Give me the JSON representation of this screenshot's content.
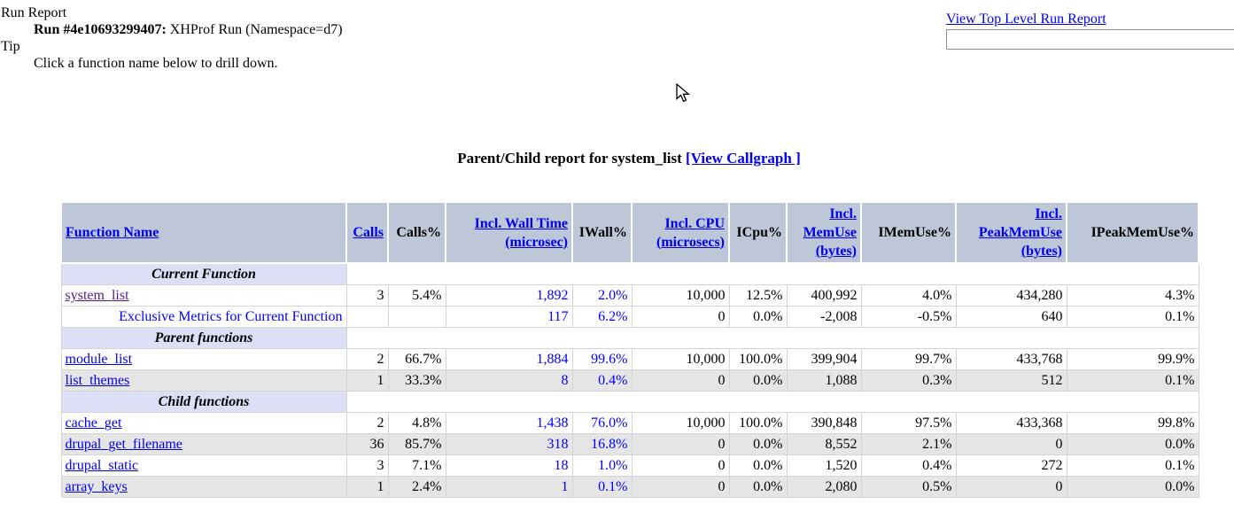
{
  "meta": {
    "run_report_label": "Run Report",
    "run_id": "Run #4e10693299407:",
    "run_desc": " XHProf Run (Namespace=d7)",
    "tip_label": "Tip",
    "tip_text": "Click a function name below to drill down.",
    "top_link": "View Top Level Run Report",
    "search_value": ""
  },
  "title": {
    "text": "Parent/Child report for system_list ",
    "callgraph_link": "[View Callgraph ]"
  },
  "colors": {
    "header_bg": "#bdc7d8",
    "section_bg": "#dddff7",
    "shaded_row_bg": "#e5e5e5",
    "link_blue": "#0000ee",
    "visited_purple": "#551a8b",
    "metric_blue": "#0000ff"
  },
  "table": {
    "columns": [
      {
        "label": "Function Name",
        "sortable": true
      },
      {
        "label": "Calls",
        "sortable": true
      },
      {
        "label": "Calls%",
        "sortable": false
      },
      {
        "label": "Incl. Wall Time (microsec)",
        "sortable": true
      },
      {
        "label": "IWall%",
        "sortable": false
      },
      {
        "label": "Incl. CPU (microsecs)",
        "sortable": true
      },
      {
        "label": "ICpu%",
        "sortable": false
      },
      {
        "label": "Incl. MemUse (bytes)",
        "sortable": true
      },
      {
        "label": "IMemUse%",
        "sortable": false
      },
      {
        "label": "Incl. PeakMemUse (bytes)",
        "sortable": true
      },
      {
        "label": "IPeakMemUse%",
        "sortable": false
      }
    ],
    "sections": [
      {
        "header": "Current Function",
        "rows": [
          {
            "name": "system_list",
            "link": true,
            "visited": true,
            "shaded": false,
            "exclusive": false,
            "values": [
              "3",
              "5.4%",
              "1,892",
              "2.0%",
              "10,000",
              "12.5%",
              "400,992",
              "4.0%",
              "434,280",
              "4.3%"
            ]
          },
          {
            "name": "Exclusive Metrics for Current Function",
            "link": false,
            "visited": false,
            "shaded": false,
            "exclusive": true,
            "values": [
              "",
              "",
              "117",
              "6.2%",
              "0",
              "0.0%",
              "-2,008",
              "-0.5%",
              "640",
              "0.1%"
            ]
          }
        ]
      },
      {
        "header": "Parent functions",
        "rows": [
          {
            "name": "module_list",
            "link": true,
            "visited": false,
            "shaded": false,
            "exclusive": false,
            "values": [
              "2",
              "66.7%",
              "1,884",
              "99.6%",
              "10,000",
              "100.0%",
              "399,904",
              "99.7%",
              "433,768",
              "99.9%"
            ]
          },
          {
            "name": "list_themes",
            "link": true,
            "visited": false,
            "shaded": true,
            "exclusive": false,
            "values": [
              "1",
              "33.3%",
              "8",
              "0.4%",
              "0",
              "0.0%",
              "1,088",
              "0.3%",
              "512",
              "0.1%"
            ]
          }
        ]
      },
      {
        "header": "Child functions",
        "rows": [
          {
            "name": "cache_get",
            "link": true,
            "visited": false,
            "shaded": false,
            "exclusive": false,
            "values": [
              "2",
              "4.8%",
              "1,438",
              "76.0%",
              "10,000",
              "100.0%",
              "390,848",
              "97.5%",
              "433,368",
              "99.8%"
            ]
          },
          {
            "name": "drupal_get_filename",
            "link": true,
            "visited": false,
            "shaded": true,
            "exclusive": false,
            "values": [
              "36",
              "85.7%",
              "318",
              "16.8%",
              "0",
              "0.0%",
              "8,552",
              "2.1%",
              "0",
              "0.0%"
            ]
          },
          {
            "name": "drupal_static",
            "link": true,
            "visited": false,
            "shaded": false,
            "exclusive": false,
            "values": [
              "3",
              "7.1%",
              "18",
              "1.0%",
              "0",
              "0.0%",
              "1,520",
              "0.4%",
              "272",
              "0.1%"
            ]
          },
          {
            "name": "array_keys",
            "link": true,
            "visited": false,
            "shaded": true,
            "exclusive": false,
            "values": [
              "1",
              "2.4%",
              "1",
              "0.1%",
              "0",
              "0.0%",
              "2,080",
              "0.5%",
              "0",
              "0.0%"
            ]
          }
        ]
      }
    ],
    "blue_value_columns": [
      2,
      3
    ]
  }
}
